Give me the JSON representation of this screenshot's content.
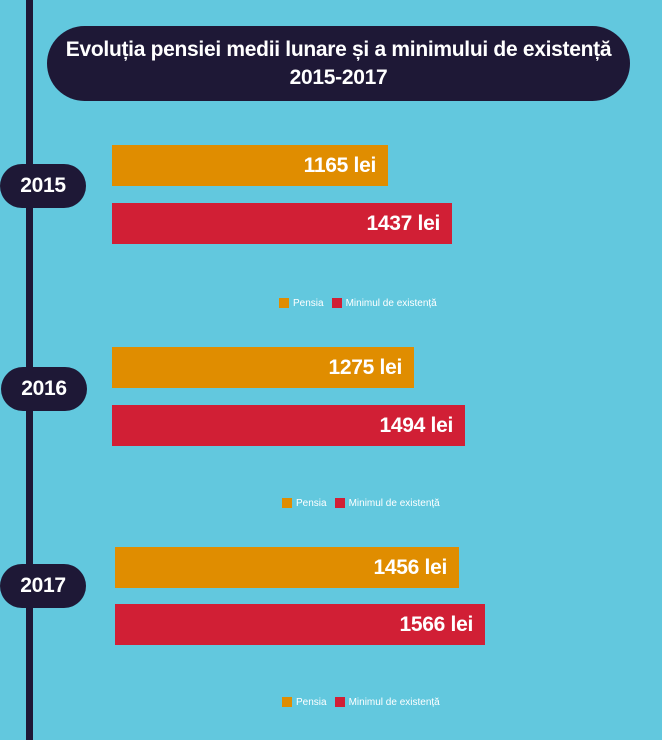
{
  "chart_data": {
    "type": "bar",
    "orientation": "horizontal",
    "title_line1": "Evoluția pensiei medii lunare și a minimului de existență",
    "title_line2": "2015-2017",
    "unit": "lei",
    "colors": {
      "pensia": "#e08d00",
      "minimul": "#d11f35"
    },
    "legend": {
      "pensia": "Pensia",
      "minimul": "Minimul de existență"
    },
    "groups": [
      {
        "year": "2015",
        "pensia": 1165,
        "pensia_label": "1165 lei",
        "minimul": 1437,
        "minimul_label": "1437 lei"
      },
      {
        "year": "2016",
        "pensia": 1275,
        "pensia_label": "1275 lei",
        "minimul": 1494,
        "minimul_label": "1494 lei"
      },
      {
        "year": "2017",
        "pensia": 1456,
        "pensia_label": "1456 lei",
        "minimul": 1566,
        "minimul_label": "1566 lei"
      }
    ]
  }
}
